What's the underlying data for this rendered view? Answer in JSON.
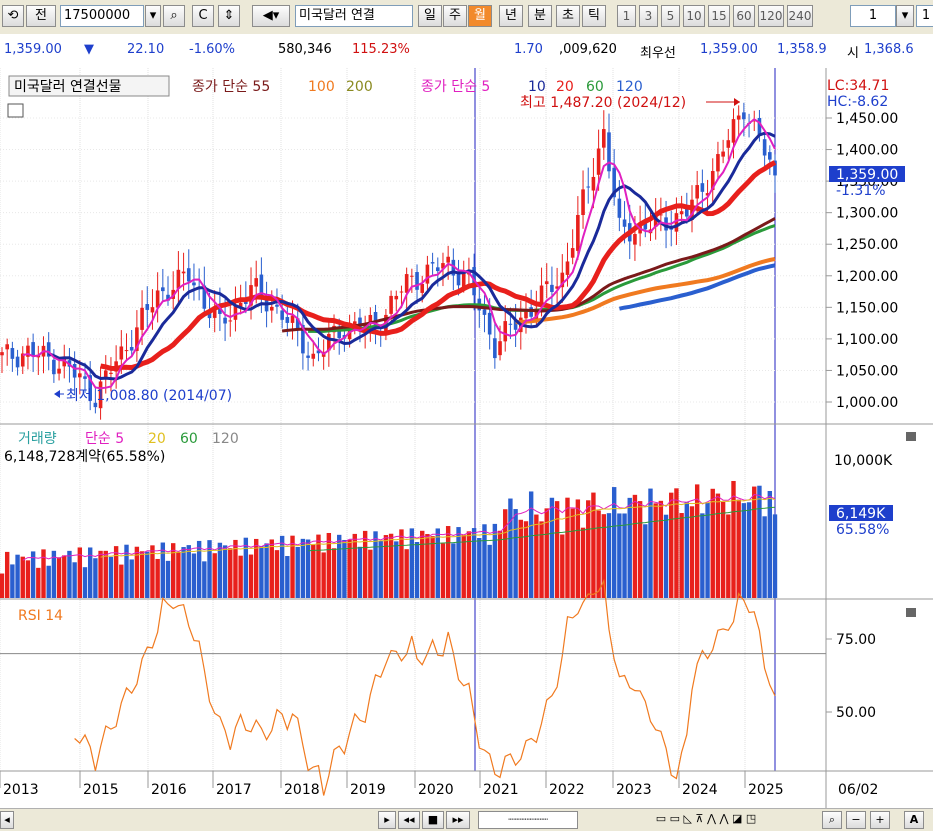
{
  "toolbar": {
    "code_label": "전",
    "code_value": "17500000",
    "symbol_name": "미국달러 연결",
    "periods": [
      "일",
      "주",
      "월",
      "년",
      "분",
      "초",
      "틱"
    ],
    "selected_period": "월",
    "intervals": [
      "1",
      "3",
      "5",
      "10",
      "15",
      "60",
      "120",
      "240"
    ],
    "count_value": "1",
    "extra": "1"
  },
  "quote": {
    "price": "1,359.00",
    "direction": "▼",
    "change": "22.10",
    "change_pct": "-1.60%",
    "volume": "580,346",
    "volume_pct": "115.23%",
    "spread": "1.70",
    "amount": ",009,620",
    "best_label": "최우선",
    "best_bid": "1,359.00",
    "best_ask": "1,358.9",
    "open_label": "시",
    "open": "1,368.6"
  },
  "price_panel": {
    "title": "미국달러 연결선물",
    "ma_long_label": "종가 단순 55",
    "ma_long_periods": [
      "100",
      "200"
    ],
    "ma_short_label": "종가 단순 5",
    "ma_short_periods": [
      "10",
      "20",
      "60",
      "120"
    ],
    "lc": "LC:34.71",
    "hc": "HC:-8.62",
    "high_note": "최고 1,487.20 (2024/12)",
    "low_note": "최저 1,008.80 (2014/07)",
    "current_price": "1,359.00",
    "current_pct": "-1.31%",
    "y_ticks": [
      "1,450.00",
      "1,400.00",
      "1,350.00",
      "1,300.00",
      "1,250.00",
      "1,200.00",
      "1,150.00",
      "1,100.00",
      "1,050.00",
      "1,000.00"
    ]
  },
  "volume_panel": {
    "title": "거래량",
    "ma_label": "단순 5",
    "ma_periods": [
      "20",
      "60",
      "120"
    ],
    "value_text": "6,148,728계약(65.58%)",
    "y_tick": "10,000K",
    "current": "6,149K",
    "current_pct": "65.58%"
  },
  "rsi_panel": {
    "title": "RSI 14",
    "y_ticks": [
      "75.00",
      "50.00"
    ]
  },
  "x_axis": {
    "years": [
      "2013",
      "2015",
      "2016",
      "2017",
      "2018",
      "2019",
      "2020",
      "2021",
      "2022",
      "2023",
      "2024",
      "2025"
    ],
    "right_label": "06/02"
  },
  "colors": {
    "up": "#e8201c",
    "down": "#2a5fcf",
    "ma5": "#e020c0",
    "ma10": "#1a2a9a",
    "ma20": "#e8201c",
    "ma60": "#2a9a3a",
    "ma120": "#2a5fcf",
    "ma55": "#7a1a1a",
    "ma100": "#f07a20",
    "ma200": "#8a8a20",
    "rsi": "#f07a20"
  },
  "chart_data": {
    "type": "candlestick",
    "title": "미국달러 연결선물",
    "frequency": "monthly",
    "x_range": [
      "2013",
      "2025-06"
    ],
    "y_range": [
      990,
      1490
    ],
    "highest": {
      "value": 1487.2,
      "date": "2024/12"
    },
    "lowest": {
      "value": 1008.8,
      "date": "2014/07"
    },
    "last_close": 1359.0,
    "approx_close_path": [
      [
        "2013-01",
        1070
      ],
      [
        "2013-06",
        1080
      ],
      [
        "2014-01",
        1060
      ],
      [
        "2014-07",
        1010
      ],
      [
        "2015-01",
        1090
      ],
      [
        "2015-07",
        1170
      ],
      [
        "2016-01",
        1200
      ],
      [
        "2016-07",
        1120
      ],
      [
        "2017-01",
        1180
      ],
      [
        "2017-07",
        1140
      ],
      [
        "2018-01",
        1070
      ],
      [
        "2018-07",
        1120
      ],
      [
        "2019-01",
        1120
      ],
      [
        "2019-07",
        1190
      ],
      [
        "2020-03",
        1220
      ],
      [
        "2020-07",
        1190
      ],
      [
        "2020-12",
        1090
      ],
      [
        "2021-07",
        1150
      ],
      [
        "2022-01",
        1200
      ],
      [
        "2022-09",
        1430
      ],
      [
        "2022-12",
        1270
      ],
      [
        "2023-07",
        1280
      ],
      [
        "2024-01",
        1300
      ],
      [
        "2024-07",
        1380
      ],
      [
        "2024-12",
        1470
      ],
      [
        "2025-06",
        1359
      ]
    ],
    "volume_last": 6148728,
    "rsi_range": [
      30,
      85
    ]
  }
}
